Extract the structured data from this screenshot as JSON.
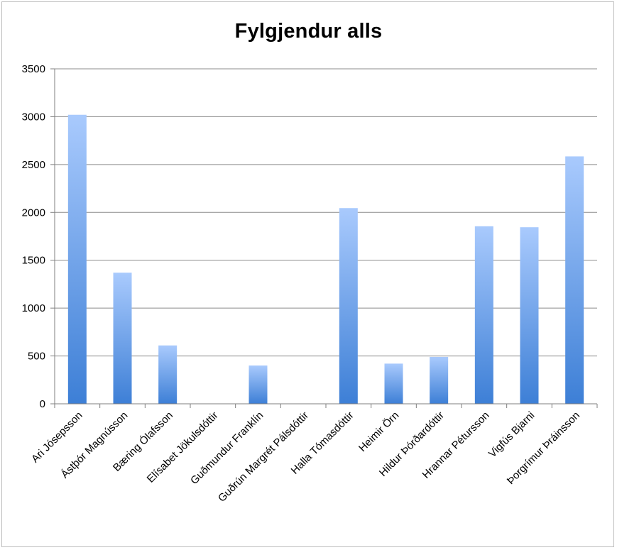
{
  "chart_data": {
    "type": "bar",
    "title": "Fylgjendur alls",
    "xlabel": "",
    "ylabel": "",
    "ylim": [
      0,
      3500
    ],
    "yticks": [
      0,
      500,
      1000,
      1500,
      2000,
      2500,
      3000,
      3500
    ],
    "grid": true,
    "legend": "none",
    "categories": [
      "Ari Jósepsson",
      "Ástþór Magnússon",
      "Bæring Ólafsson",
      "Elísabet Jökulsdóttir",
      "Guðmundur Franklín",
      "Guðrún Margrét Pálsdóttir",
      "Halla Tómasdóttir",
      "Heimir Örn",
      "Hildur Þórðardóttir",
      "Hrannar Pétursson",
      "Vigfús Bjarni",
      "Þorgrímur Þráinsson"
    ],
    "values": [
      3020,
      1370,
      610,
      0,
      400,
      0,
      2045,
      420,
      490,
      1855,
      1845,
      2585
    ],
    "colors": {
      "bar_top": "#a9cafd",
      "bar_bottom": "#3d7fd6",
      "grid": "#8c8c8c",
      "axis": "#7f7f7f"
    }
  }
}
